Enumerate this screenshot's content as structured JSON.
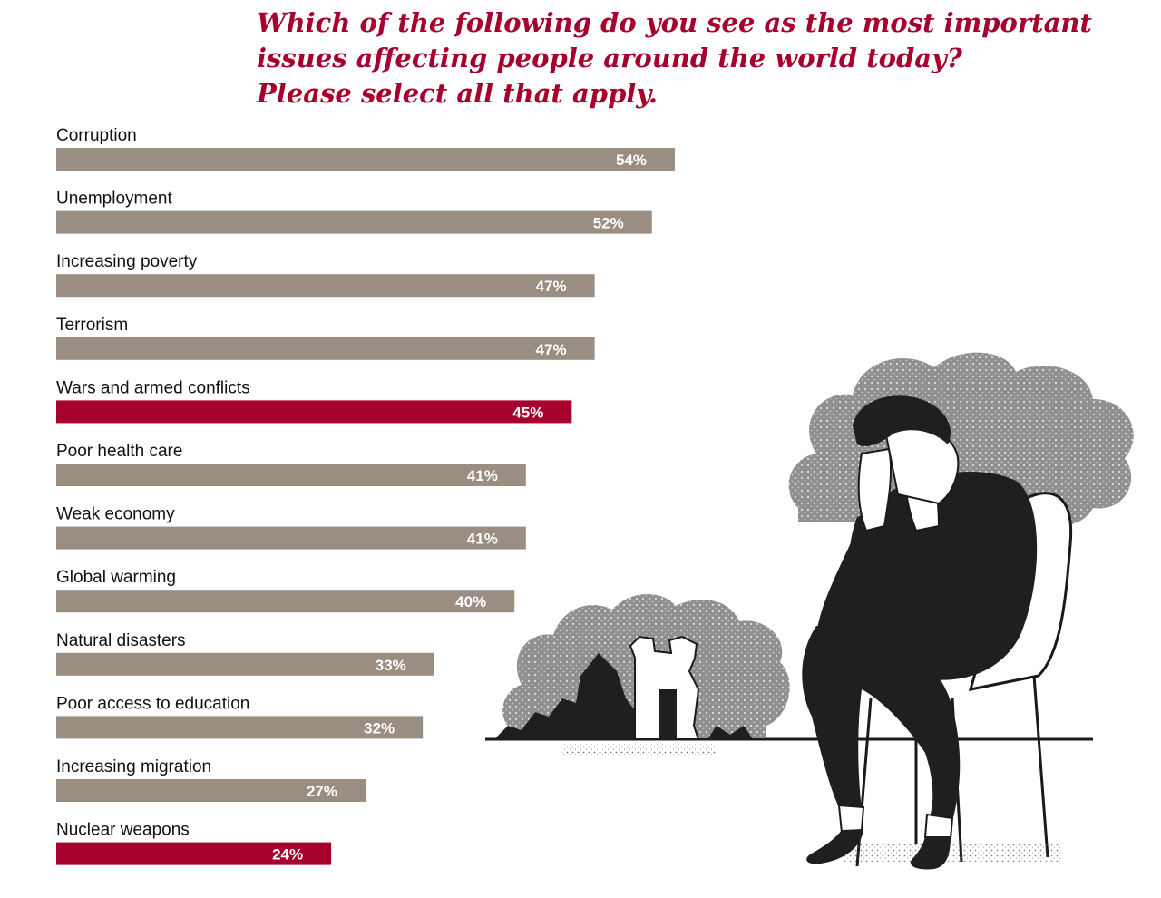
{
  "title_lines": [
    "Which of the following do you see as the most important",
    "issues affecting people around the world today?",
    "Please select all that apply."
  ],
  "colors": {
    "default_bar": "#9a8e82",
    "highlight_bar": "#a6002c",
    "title": "#a6002c"
  },
  "chart_data": {
    "type": "bar",
    "orientation": "horizontal",
    "title": "Which of the following do you see as the most important issues affecting people around the world today? Please select all that apply.",
    "xlabel": "",
    "ylabel": "",
    "unit": "%",
    "categories": [
      "Corruption",
      "Unemployment",
      "Increasing poverty",
      "Terrorism",
      "Wars and armed conflicts",
      "Poor health care",
      "Weak economy",
      "Global warming",
      "Natural disasters",
      "Poor access to education",
      "Increasing migration",
      "Nuclear weapons"
    ],
    "values": [
      54,
      52,
      47,
      47,
      45,
      41,
      41,
      40,
      33,
      32,
      27,
      24
    ],
    "value_labels": [
      "54%",
      "52%",
      "47%",
      "47%",
      "45%",
      "41%",
      "41%",
      "40%",
      "33%",
      "32%",
      "27%",
      "24%"
    ],
    "highlighted": [
      "Wars and armed conflicts",
      "Nuclear weapons"
    ],
    "grid": false,
    "legend": "none"
  },
  "illustration": {
    "icons": [
      "smoke-cloud-icon",
      "ruined-building-icon",
      "sad-person-icon",
      "chair-icon"
    ]
  }
}
